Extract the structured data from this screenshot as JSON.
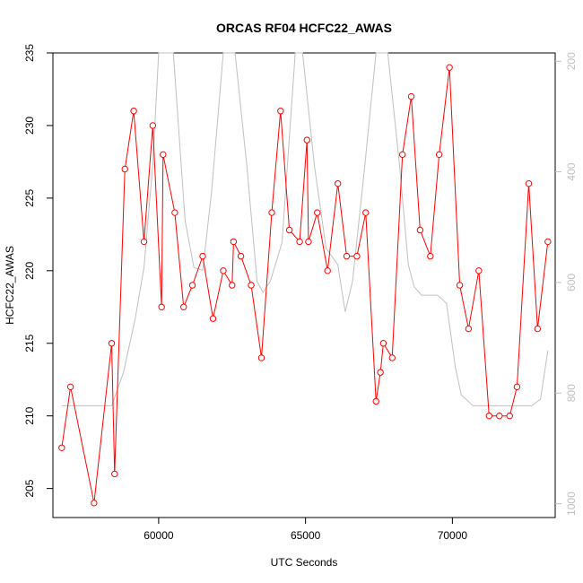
{
  "chart_data": {
    "type": "line",
    "title": "ORCAS RF04 HCFC22_AWAS",
    "xlabel": "UTC Seconds",
    "ylabel": "HCFC22_AWAS",
    "xlim": [
      56400,
      73500
    ],
    "ylim": [
      203,
      235
    ],
    "x_ticks": [
      60000,
      65000,
      70000
    ],
    "y_ticks": [
      205,
      210,
      215,
      220,
      225,
      230,
      235
    ],
    "y2_ticks": [
      200,
      400,
      600,
      800,
      1000
    ],
    "y2lim": [
      185,
      1025
    ],
    "grid": false,
    "series": [
      {
        "points": [
          [
            56700,
            207.8
          ],
          [
            57000,
            212
          ],
          [
            57800,
            204
          ],
          [
            58400,
            215
          ],
          [
            58500,
            206
          ],
          [
            58850,
            227
          ],
          [
            59150,
            231
          ],
          [
            59500,
            222
          ],
          [
            59800,
            230
          ],
          [
            60100,
            217.5
          ],
          [
            60150,
            228
          ],
          [
            60550,
            224
          ],
          [
            60850,
            217.5
          ],
          [
            61150,
            219
          ],
          [
            61500,
            221
          ],
          [
            61850,
            216.7
          ],
          [
            62200,
            220
          ],
          [
            62500,
            219
          ],
          [
            62550,
            222
          ],
          [
            62800,
            221
          ],
          [
            63150,
            219
          ],
          [
            63500,
            214
          ],
          [
            63850,
            224
          ],
          [
            64150,
            231
          ],
          [
            64450,
            222.8
          ],
          [
            64800,
            222
          ],
          [
            65050,
            229
          ],
          [
            65100,
            222
          ],
          [
            65400,
            224
          ],
          [
            65750,
            220
          ],
          [
            66100,
            226
          ],
          [
            66400,
            221
          ],
          [
            66750,
            221
          ],
          [
            67050,
            224
          ],
          [
            67400,
            211
          ],
          [
            67550,
            213
          ],
          [
            67650,
            215
          ],
          [
            67950,
            214
          ],
          [
            68300,
            228
          ],
          [
            68600,
            232
          ],
          [
            68900,
            222.8
          ],
          [
            69250,
            221
          ],
          [
            69550,
            228
          ],
          [
            69900,
            234
          ],
          [
            70250,
            219
          ],
          [
            70550,
            216
          ],
          [
            70900,
            220
          ],
          [
            71250,
            210
          ],
          [
            71600,
            210
          ],
          [
            71950,
            210
          ],
          [
            72200,
            212
          ],
          [
            72600,
            226
          ],
          [
            72900,
            216
          ],
          [
            73250,
            222
          ]
        ]
      },
      {
        "axis": "right",
        "points": [
          [
            56700,
            823
          ],
          [
            58400,
            823
          ],
          [
            58800,
            763
          ],
          [
            59200,
            666
          ],
          [
            59500,
            573
          ],
          [
            59800,
            388
          ],
          [
            60000,
            185
          ],
          [
            60500,
            185
          ],
          [
            60900,
            488
          ],
          [
            61200,
            573
          ],
          [
            61500,
            578
          ],
          [
            61800,
            437
          ],
          [
            62200,
            185
          ],
          [
            62600,
            185
          ],
          [
            63000,
            388
          ],
          [
            63350,
            598
          ],
          [
            63550,
            618
          ],
          [
            63800,
            598
          ],
          [
            64200,
            528
          ],
          [
            64650,
            185
          ],
          [
            64900,
            185
          ],
          [
            65300,
            388
          ],
          [
            65700,
            538
          ],
          [
            66100,
            568
          ],
          [
            66350,
            653
          ],
          [
            66600,
            598
          ],
          [
            67000,
            398
          ],
          [
            67400,
            185
          ],
          [
            67800,
            185
          ],
          [
            68200,
            388
          ],
          [
            68500,
            568
          ],
          [
            68700,
            608
          ],
          [
            68950,
            623
          ],
          [
            69500,
            623
          ],
          [
            69800,
            638
          ],
          [
            70100,
            753
          ],
          [
            70300,
            803
          ],
          [
            70700,
            823
          ],
          [
            72700,
            823
          ],
          [
            73000,
            811
          ],
          [
            73250,
            723
          ]
        ]
      }
    ],
    "colors": {
      "primary_line": "#ff0000",
      "secondary_line": "#c0c0c0",
      "axis": "#000000"
    }
  }
}
